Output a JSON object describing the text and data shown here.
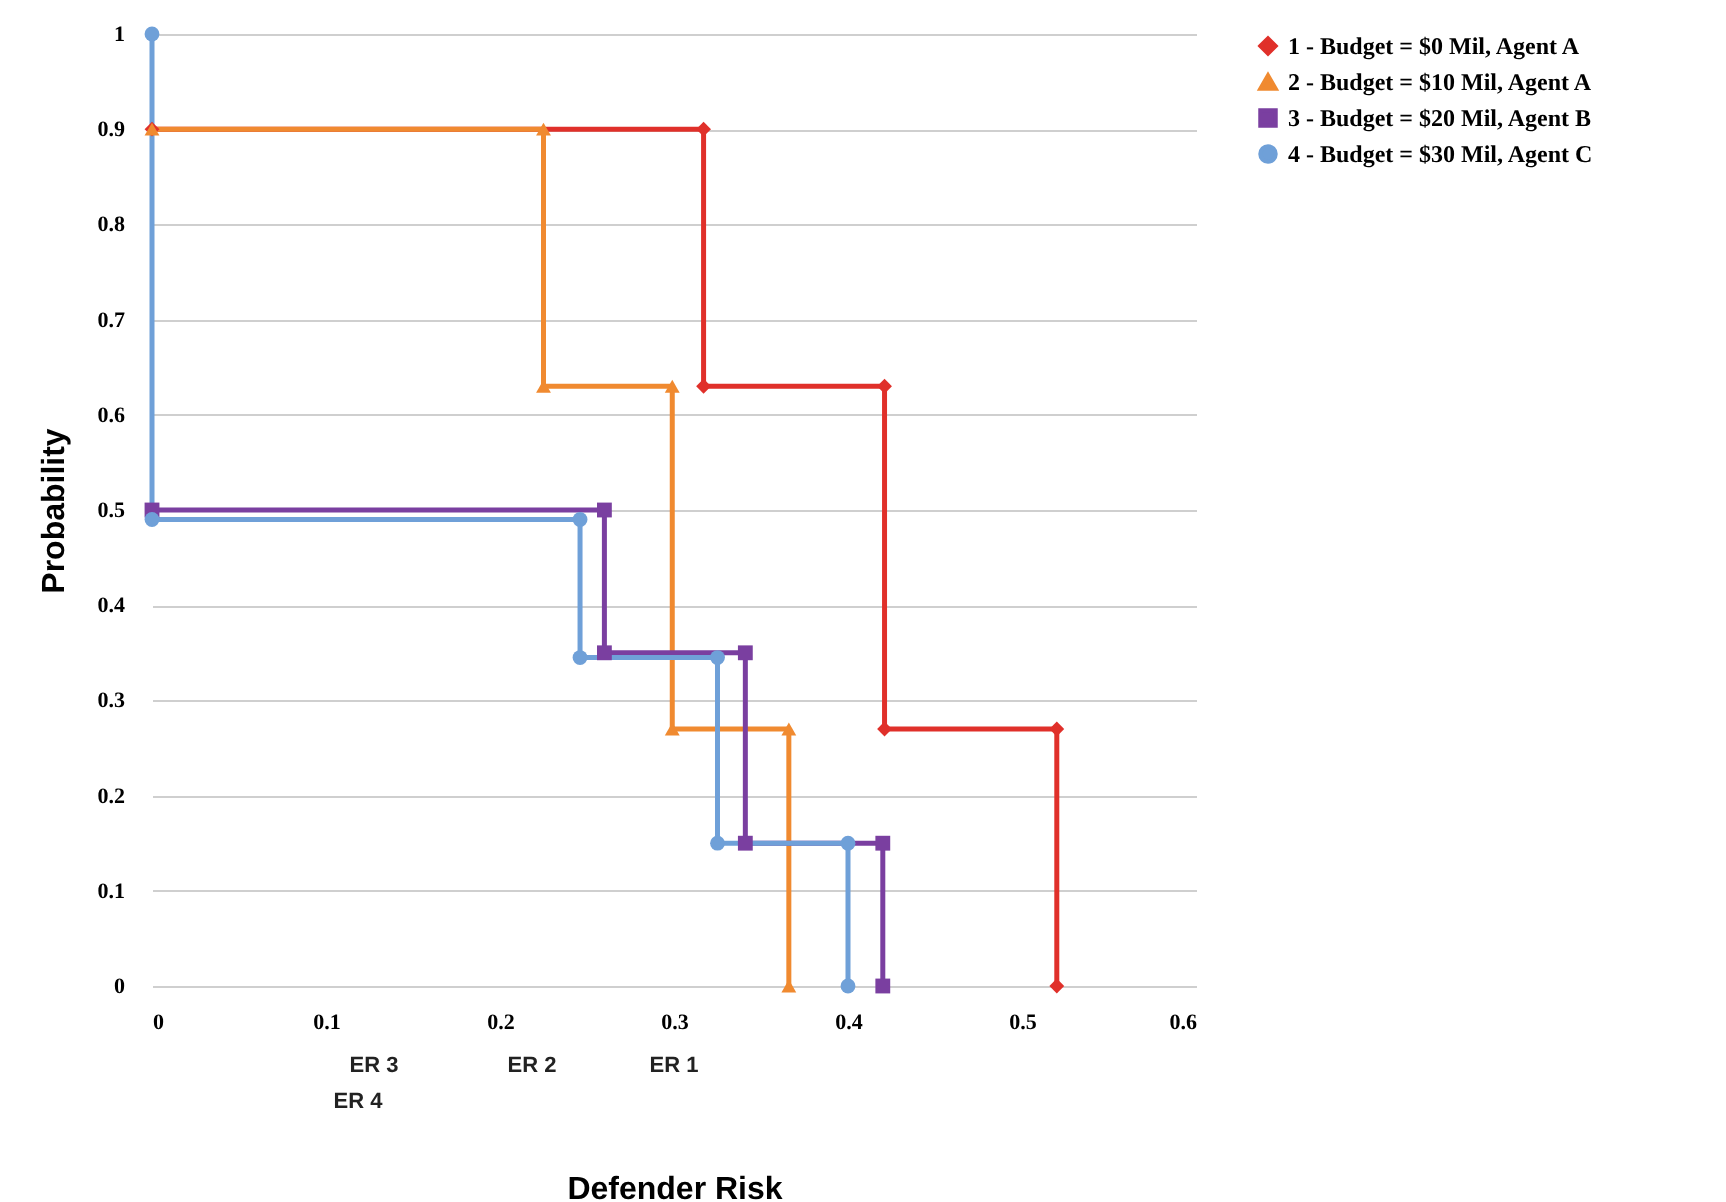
{
  "chart_data": {
    "type": "line",
    "xlabel": "Defender Risk",
    "ylabel": "Probability",
    "xlim": [
      0,
      0.6
    ],
    "xticks": [
      0,
      0.1,
      0.2,
      0.3,
      0.4,
      0.5,
      0.6
    ],
    "ylim": [
      0,
      1
    ],
    "yticks": [
      0,
      0.1,
      0.2,
      0.3,
      0.4,
      0.5,
      0.6,
      0.7,
      0.8,
      0.9,
      1
    ],
    "grid": "y",
    "legend": "right",
    "series": [
      {
        "name": "1 - Budget = $0 Mil, Agent A",
        "color": "#e0302a",
        "marker": "diamond",
        "x": [
          0,
          0.317,
          0.317,
          0.421,
          0.421,
          0.52,
          0.52
        ],
        "values": [
          0.9,
          0.9,
          0.63,
          0.63,
          0.27,
          0.27,
          0
        ]
      },
      {
        "name": "2 - Budget = $10 Mil, Agent A",
        "color": "#f08a30",
        "marker": "triangle",
        "x": [
          0,
          0.225,
          0.225,
          0.299,
          0.299,
          0.366,
          0.366
        ],
        "values": [
          0.9,
          0.9,
          0.63,
          0.63,
          0.27,
          0.27,
          0
        ]
      },
      {
        "name": "3 - Budget = $20 Mil, Agent B",
        "color": "#7a3fa0",
        "marker": "square",
        "x": [
          0,
          0.26,
          0.26,
          0.341,
          0.341,
          0.42,
          0.42
        ],
        "values": [
          0.5,
          0.5,
          0.35,
          0.35,
          0.15,
          0.15,
          0
        ]
      },
      {
        "name": "4 - Budget = $30 Mil, Agent C",
        "color": "#6fa0d8",
        "marker": "circle",
        "x": [
          0,
          0,
          0.246,
          0.246,
          0.325,
          0.325,
          0.4,
          0.4
        ],
        "values": [
          1,
          0.49,
          0.49,
          0.345,
          0.345,
          0.15,
          0.15,
          0
        ]
      }
    ],
    "annotations": [
      "ER 3",
      "ER 4",
      "ER 2",
      "ER 1"
    ]
  }
}
